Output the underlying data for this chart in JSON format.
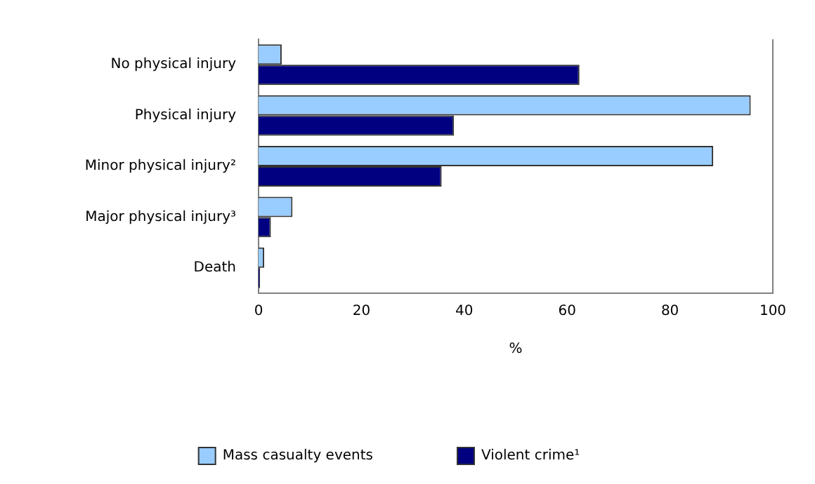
{
  "chart_data": {
    "type": "bar",
    "orientation": "horizontal",
    "categories": [
      "No physical injury",
      "Physical injury",
      "Minor physical injury²",
      "Major physical injury³",
      "Death"
    ],
    "series": [
      {
        "name": "Mass casualty events",
        "color": "#99ccff",
        "values": [
          4.5,
          95.7,
          88.4,
          6.6,
          1.1
        ]
      },
      {
        "name": "Violent crime¹",
        "color": "#000080",
        "values": [
          62.4,
          38.0,
          35.6,
          2.4,
          0.3
        ]
      }
    ],
    "xlabel": "%",
    "xlim": [
      0,
      100
    ],
    "xticks": [
      0,
      20,
      40,
      60,
      80,
      100
    ],
    "grid": false,
    "legend": "bottom"
  }
}
